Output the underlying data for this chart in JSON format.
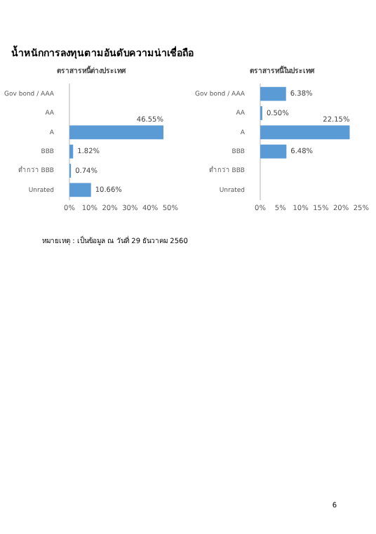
{
  "chart_data": [
    {
      "type": "bar",
      "title": "น้ำหนักการลงทุนตามอันดับความน่าเชื่อถือ",
      "subtitle": "ตราสารหนี้ต่างประเทศ",
      "orientation": "horizontal",
      "categories": [
        "Gov bond / AAA",
        "AA",
        "A",
        "BBB",
        "ต่ำกว่า BBB",
        "Unrated"
      ],
      "values": [
        null,
        null,
        46.55,
        1.82,
        0.74,
        10.66
      ],
      "value_labels": [
        null,
        null,
        "46.55%",
        "1.82%",
        "0.74%",
        "10.66%"
      ],
      "color": "#5b9bd5",
      "xlim": [
        0,
        50
      ],
      "xticks": [
        {
          "value": 0,
          "label": "0%"
        },
        {
          "value": 10,
          "label": "10%"
        },
        {
          "value": 20,
          "label": "20%"
        },
        {
          "value": 30,
          "label": "30%"
        },
        {
          "value": 40,
          "label": "40%"
        },
        {
          "value": 50,
          "label": "50%"
        }
      ]
    },
    {
      "type": "bar",
      "subtitle": "ตราสารหนี้ในประเทศ",
      "orientation": "horizontal",
      "categories": [
        "Gov bond / AAA",
        "AA",
        "A",
        "BBB",
        "ต่ำกว่า BBB",
        "Unrated"
      ],
      "values": [
        6.38,
        0.5,
        22.15,
        6.48,
        null,
        null
      ],
      "value_labels": [
        "6.38%",
        "0.50%",
        "22.15%",
        "6.48%",
        null,
        null
      ],
      "color": "#5b9bd5",
      "xlim": [
        0,
        25
      ],
      "xticks": [
        {
          "value": 0,
          "label": "0%"
        },
        {
          "value": 5,
          "label": "5%"
        },
        {
          "value": 10,
          "label": "10%"
        },
        {
          "value": 15,
          "label": "15%"
        },
        {
          "value": 20,
          "label": "20%"
        },
        {
          "value": 25,
          "label": "25%"
        }
      ],
      "annotations": [
        "หมายเหตุ : เป็นข้อมูล ณ วันที่ 29 ธันวาคม 2560",
        "6"
      ]
    }
  ]
}
